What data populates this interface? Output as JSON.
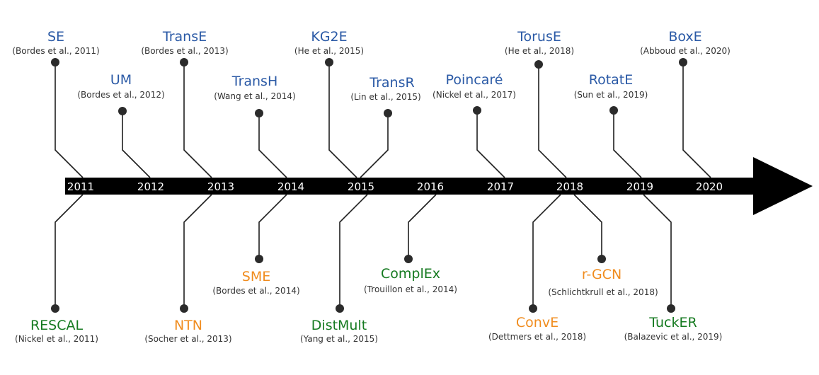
{
  "colors": {
    "translational": "#2b5aa6",
    "bilinear": "#157a20",
    "neural": "#f08c1e",
    "axis": "#000000",
    "year_text": "#ffffff"
  },
  "years": [
    "2011",
    "2012",
    "2013",
    "2014",
    "2015",
    "2016",
    "2017",
    "2018",
    "2019",
    "2020"
  ],
  "models": [
    {
      "id": "se",
      "name": "SE",
      "citation": "(Bordes et al., 2011)",
      "category": "translational"
    },
    {
      "id": "um",
      "name": "UM",
      "citation": "(Bordes et al., 2012)",
      "category": "translational"
    },
    {
      "id": "transe",
      "name": "TransE",
      "citation": "(Bordes et al., 2013)",
      "category": "translational"
    },
    {
      "id": "transh",
      "name": "TransH",
      "citation": "(Wang et al., 2014)",
      "category": "translational"
    },
    {
      "id": "kg2e",
      "name": "KG2E",
      "citation": "(He et al., 2015)",
      "category": "translational"
    },
    {
      "id": "transr",
      "name": "TransR",
      "citation": "(Lin et al., 2015)",
      "category": "translational"
    },
    {
      "id": "poincare",
      "name": "Poincaré",
      "citation": "(Nickel et al., 2017)",
      "category": "translational"
    },
    {
      "id": "toruse",
      "name": "TorusE",
      "citation": "(He et al., 2018)",
      "category": "translational"
    },
    {
      "id": "rotate",
      "name": "RotatE",
      "citation": "(Sun et al., 2019)",
      "category": "translational"
    },
    {
      "id": "boxe",
      "name": "BoxE",
      "citation": "(Abboud et al., 2020)",
      "category": "translational"
    },
    {
      "id": "rescal",
      "name": "RESCAL",
      "citation": "(Nickel et al., 2011)",
      "category": "bilinear"
    },
    {
      "id": "ntn",
      "name": "NTN",
      "citation": "(Socher et al., 2013)",
      "category": "neural"
    },
    {
      "id": "sme",
      "name": "SME",
      "citation": "(Bordes et al., 2014)",
      "category": "neural"
    },
    {
      "id": "distmult",
      "name": "DistMult",
      "citation": "(Yang et al., 2015)",
      "category": "bilinear"
    },
    {
      "id": "complex",
      "name": "ComplEx",
      "citation": "(Trouillon et al., 2014)",
      "category": "bilinear"
    },
    {
      "id": "conve",
      "name": "ConvE",
      "citation": "(Dettmers et al., 2018)",
      "category": "neural"
    },
    {
      "id": "rgcn",
      "name": "r-GCN",
      "citation": "(Schlichtkrull et al., 2018)",
      "category": "neural"
    },
    {
      "id": "tucker",
      "name": "TuckER",
      "citation": "(Balazevic et al., 2019)",
      "category": "bilinear"
    }
  ]
}
